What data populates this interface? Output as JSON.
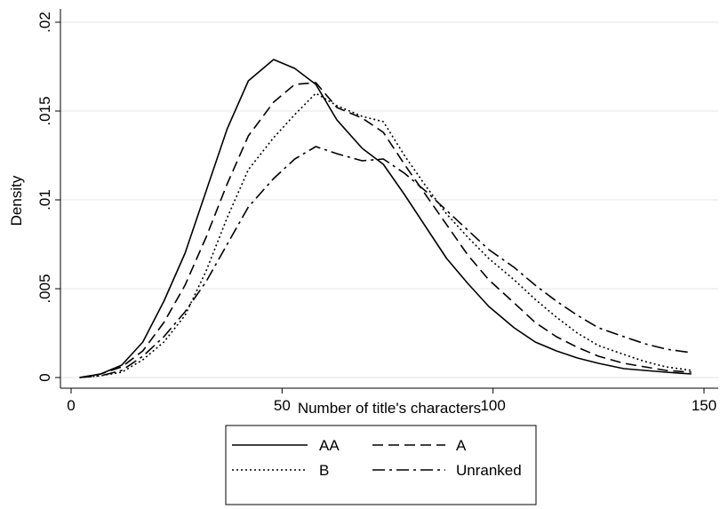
{
  "chart_data": {
    "type": "line",
    "title": "",
    "xlabel": "Number of title's characters",
    "ylabel": "Density",
    "xlim": [
      0,
      150
    ],
    "ylim": [
      0,
      0.02
    ],
    "x_ticks": [
      0,
      50,
      100,
      150
    ],
    "x_tick_labels": [
      "0",
      "50",
      "100",
      "150"
    ],
    "y_ticks": [
      0,
      0.005,
      0.01,
      0.015,
      0.02
    ],
    "y_tick_labels": [
      "0",
      ".005",
      ".01",
      ".015",
      ".02"
    ],
    "grid": "horizontal",
    "legend_position": "bottom",
    "series": [
      {
        "name": "AA",
        "dash": "solid",
        "x": [
          2,
          7,
          12,
          17,
          22,
          27,
          32,
          37,
          42,
          48,
          53,
          58,
          63,
          69,
          74,
          79,
          84,
          89,
          94,
          99,
          105,
          110,
          115,
          120,
          125,
          131,
          136,
          141,
          147
        ],
        "y": [
          0.0,
          0.0002,
          0.0007,
          0.002,
          0.0043,
          0.007,
          0.0105,
          0.014,
          0.0167,
          0.0179,
          0.0174,
          0.0165,
          0.0145,
          0.0129,
          0.012,
          0.0103,
          0.0085,
          0.0067,
          0.0053,
          0.004,
          0.0028,
          0.002,
          0.0015,
          0.0011,
          0.0008,
          0.0005,
          0.0004,
          0.0003,
          0.0002
        ]
      },
      {
        "name": "A",
        "dash": "dashed",
        "x": [
          2,
          7,
          12,
          17,
          22,
          27,
          32,
          37,
          42,
          48,
          53,
          58,
          63,
          69,
          74,
          79,
          84,
          89,
          94,
          99,
          105,
          110,
          115,
          120,
          125,
          131,
          136,
          141,
          147
        ],
        "y": [
          0.0,
          0.0002,
          0.0006,
          0.0015,
          0.0031,
          0.0052,
          0.0079,
          0.0109,
          0.0136,
          0.0155,
          0.0165,
          0.0166,
          0.0152,
          0.0146,
          0.0138,
          0.012,
          0.0103,
          0.0086,
          0.0069,
          0.0055,
          0.0042,
          0.0031,
          0.0023,
          0.0017,
          0.0012,
          0.0008,
          0.0006,
          0.0004,
          0.0003
        ]
      },
      {
        "name": "B",
        "dash": "dotted",
        "x": [
          2,
          7,
          12,
          17,
          22,
          27,
          32,
          37,
          42,
          48,
          53,
          58,
          63,
          69,
          74,
          79,
          84,
          89,
          94,
          99,
          105,
          110,
          115,
          120,
          125,
          131,
          136,
          141,
          147
        ],
        "y": [
          0.0,
          0.0001,
          0.0003,
          0.001,
          0.002,
          0.0035,
          0.006,
          0.009,
          0.0117,
          0.0135,
          0.0148,
          0.016,
          0.0153,
          0.0147,
          0.0144,
          0.0125,
          0.0108,
          0.0092,
          0.0079,
          0.0067,
          0.0055,
          0.0044,
          0.0034,
          0.0025,
          0.0018,
          0.0013,
          0.0009,
          0.0006,
          0.0004
        ]
      },
      {
        "name": "Unranked",
        "dash": "longdash-dot",
        "x": [
          2,
          7,
          12,
          17,
          22,
          27,
          32,
          37,
          42,
          48,
          53,
          58,
          63,
          69,
          74,
          79,
          84,
          89,
          94,
          99,
          105,
          110,
          115,
          120,
          125,
          131,
          136,
          141,
          147
        ],
        "y": [
          0.0,
          0.0001,
          0.0004,
          0.0012,
          0.0023,
          0.0037,
          0.0054,
          0.0075,
          0.0096,
          0.0112,
          0.0123,
          0.013,
          0.0126,
          0.0122,
          0.0123,
          0.0115,
          0.0105,
          0.0094,
          0.0083,
          0.0072,
          0.0062,
          0.0052,
          0.0043,
          0.0035,
          0.0028,
          0.0023,
          0.0019,
          0.0016,
          0.0014
        ]
      }
    ]
  }
}
